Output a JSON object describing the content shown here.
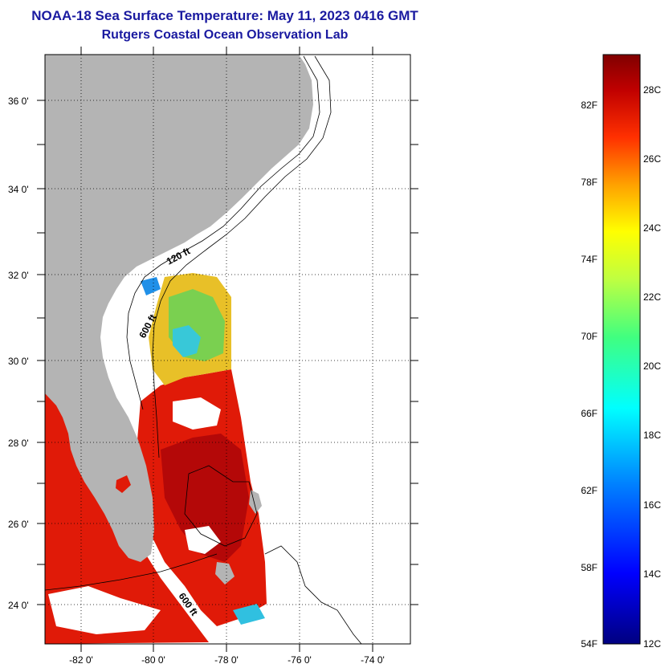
{
  "title": {
    "line1": "NOAA-18 Sea Surface Temperature:  May 11, 2023 0416 GMT",
    "line2": "Rutgers Coastal Ocean Observation Lab"
  },
  "map": {
    "lat_labels": [
      "36 0'",
      "34 0'",
      "32 0'",
      "30 0'",
      "28 0'",
      "26 0'",
      "24 0'"
    ],
    "lon_labels": [
      "-82 0'",
      "-80 0'",
      "-78 0'",
      "-76 0'",
      "-74 0'"
    ],
    "isobath_labels": [
      "120 ft",
      "600 ft",
      "600 ft"
    ],
    "colors": {
      "land": "#b4b4b4",
      "cloud": "#ffffff",
      "warm": "#e01a08",
      "hot": "#b40808"
    }
  },
  "colorbar": {
    "fahrenheit_labels": [
      "82F",
      "78F",
      "74F",
      "70F",
      "66F",
      "62F",
      "58F",
      "54F"
    ],
    "celsius_labels": [
      "28C",
      "26C",
      "24C",
      "22C",
      "20C",
      "18C",
      "16C",
      "14C",
      "12C"
    ]
  }
}
